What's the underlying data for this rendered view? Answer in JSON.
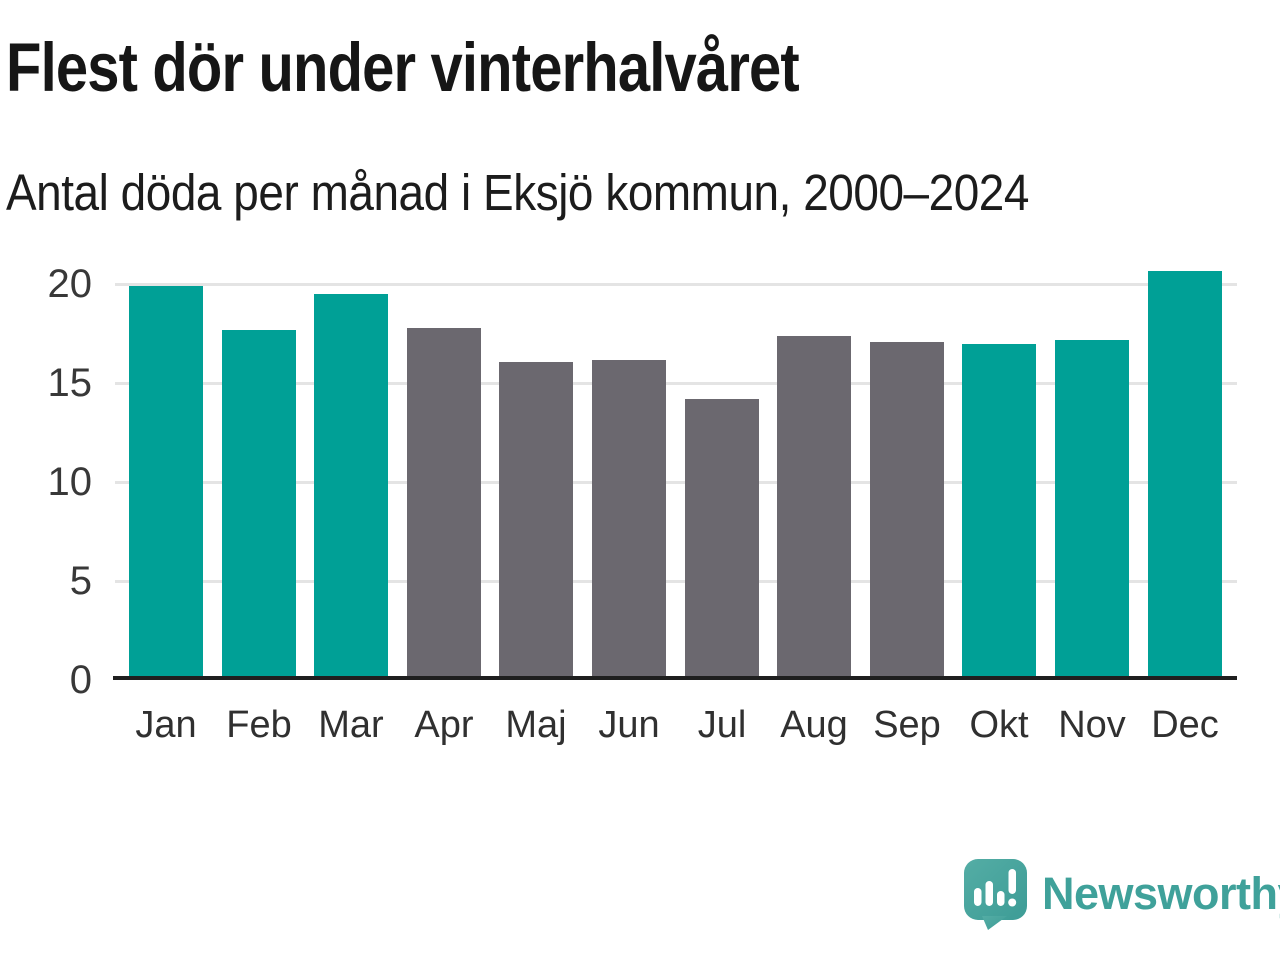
{
  "header": {
    "title": "Flest dör under vinterhalvåret",
    "subtitle": "Antal döda per månad i Eksjö kommun, 2000–2024"
  },
  "chart_data": {
    "type": "bar",
    "title": "Flest dör under vinterhalvåret",
    "subtitle": "Antal döda per månad i Eksjö kommun, 2000–2024",
    "categories": [
      "Jan",
      "Feb",
      "Mar",
      "Apr",
      "Maj",
      "Jun",
      "Jul",
      "Aug",
      "Sep",
      "Okt",
      "Nov",
      "Dec"
    ],
    "values": [
      19.8,
      17.6,
      19.4,
      17.7,
      16.0,
      16.1,
      14.1,
      17.3,
      17.0,
      16.9,
      17.1,
      20.6
    ],
    "bar_colors": [
      "#00a096",
      "#00a096",
      "#00a096",
      "#6b686f",
      "#6b686f",
      "#6b686f",
      "#6b686f",
      "#6b686f",
      "#6b686f",
      "#00a096",
      "#00a096",
      "#00a096"
    ],
    "highlight_color": "#00a096",
    "muted_color": "#6b686f",
    "yticks": [
      0,
      5,
      10,
      15,
      20
    ],
    "ylim": [
      0,
      21
    ],
    "xlabel": "",
    "ylabel": "",
    "grid": "horizontal",
    "legend": "none"
  },
  "footer": {
    "brand": "Newsworthy",
    "brand_color": "#3fa19a",
    "logo_icon": "newsworthy-speech-bubble-bar-chart-icon"
  }
}
